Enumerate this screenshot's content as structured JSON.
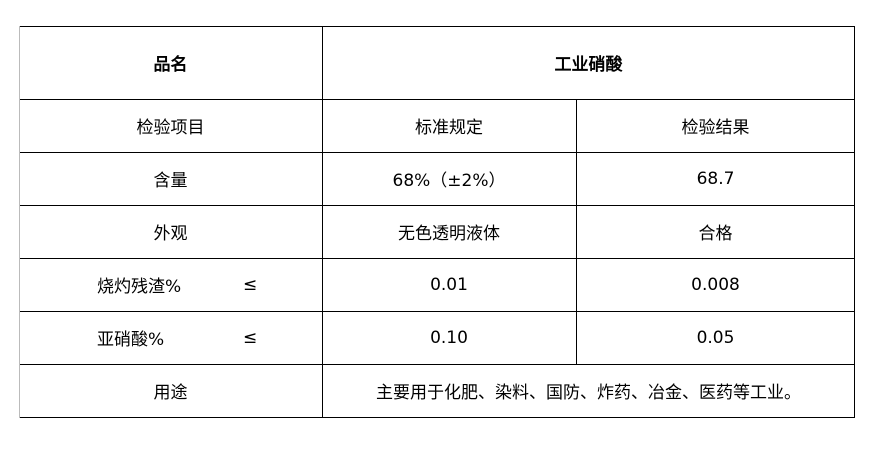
{
  "header": {
    "name_label": "品名",
    "product": "工业硝酸"
  },
  "columns": {
    "item": "检验项目",
    "standard": "标准规定",
    "result": "检验结果"
  },
  "rows": [
    {
      "item": "含量",
      "standard": "68%（±2%）",
      "result": "68.7"
    },
    {
      "item": "外观",
      "standard": "无色透明液体",
      "result": "合格"
    },
    {
      "item": "烧灼残渣%",
      "symbol": "≤",
      "standard": "0.01",
      "result": "0.008"
    },
    {
      "item": "亚硝酸%",
      "symbol": "≤",
      "standard": "0.10",
      "result": "0.05"
    }
  ],
  "usage": {
    "label": "用途",
    "text": "主要用于化肥、染料、国防、炸药、冶金、医药等工业。"
  }
}
